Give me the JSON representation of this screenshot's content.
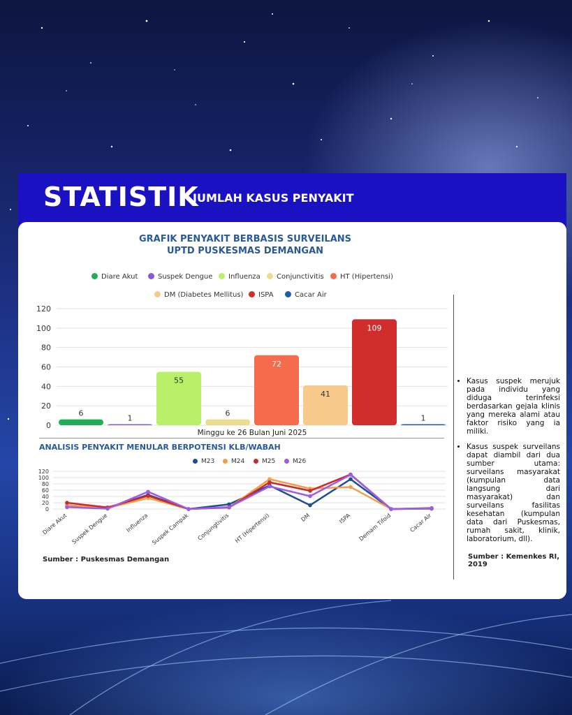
{
  "header": {
    "title_big": "STATISTIK",
    "title_small": "JUMLAH KASUS PENYAKIT",
    "bg_color": "#1a12c2"
  },
  "chart_data": [
    {
      "type": "bar",
      "title": "GRAFIK PENYAKIT BERBASIS SURVEILANS\nUPTD PUSKESMAS DEMANGAN",
      "title_line1": "GRAFIK PENYAKIT BERBASIS SURVEILANS",
      "title_line2": "UPTD PUSKESMAS DEMANGAN",
      "xlabel": "Minggu ke 26 Bulan Juni 2025",
      "ylim": [
        0,
        120
      ],
      "yticks": [
        0,
        20,
        40,
        60,
        80,
        100,
        120
      ],
      "legend_position": "top",
      "grid": true,
      "series": [
        {
          "name": "Diare Akut",
          "value": 6,
          "color": "#1fae55"
        },
        {
          "name": "Suspek Dengue",
          "value": 1,
          "color": "#8a55e0"
        },
        {
          "name": "Influenza",
          "value": 55,
          "color": "#b9f06a"
        },
        {
          "name": "Conjunctivitis",
          "value": 6,
          "color": "#ecdc90"
        },
        {
          "name": "HT (Hipertensi)",
          "value": 72,
          "color": "#f56b4c"
        },
        {
          "name": "DM (Diabetes Mellitus)",
          "value": 41,
          "color": "#f7c98a"
        },
        {
          "name": "ISPA",
          "value": 109,
          "color": "#d12d2d"
        },
        {
          "name": "Cacar Air",
          "value": 1,
          "color": "#1f5ca8"
        }
      ]
    },
    {
      "type": "line",
      "title": "ANALISIS  PENYAKIT MENULAR  BERPOTENSI KLB/WABAH",
      "categories": [
        "Diare Akut",
        "Suspek Dengue",
        "Influenza",
        "Suspek Campak",
        "Conjungtivitis",
        "HT (Hipertensi)",
        "DM",
        "ISPA",
        "Demam Tifoid",
        "Cacar Air"
      ],
      "ylim": [
        0,
        120
      ],
      "yticks": [
        0,
        20,
        40,
        60,
        80,
        100,
        120
      ],
      "legend_position": "top",
      "grid": true,
      "series": [
        {
          "name": "M23",
          "color": "#1f4e8c",
          "values": [
            12,
            3,
            45,
            0,
            15,
            75,
            12,
            95,
            0,
            3
          ]
        },
        {
          "name": "M24",
          "color": "#f0a04b",
          "values": [
            12,
            3,
            35,
            0,
            5,
            95,
            65,
            70,
            0,
            2
          ]
        },
        {
          "name": "M25",
          "color": "#c92a2a",
          "values": [
            20,
            5,
            42,
            0,
            5,
            85,
            58,
            110,
            0,
            1
          ]
        },
        {
          "name": "M26",
          "color": "#9b5de5",
          "values": [
            6,
            1,
            55,
            0,
            6,
            72,
            41,
            109,
            0,
            1
          ]
        }
      ]
    }
  ],
  "source_left": "Sumber : Puskesmas Demangan",
  "notes": [
    "Kasus suspek merujuk pada individu yang diduga terinfeksi berdasarkan gejala klinis yang mereka alami atau faktor risiko yang ia miliki.",
    "Kasus suspek surveilans dapat diambil dari dua sumber utama: surveilans masyarakat (kumpulan data langsung dari masyarakat) dan surveilans fasilitas kesehatan (kumpulan data dari Puskesmas, rumah sakit, klinik, laboratorium, dll)."
  ],
  "source_right": "Sumber : Kemenkes RI, 2019"
}
